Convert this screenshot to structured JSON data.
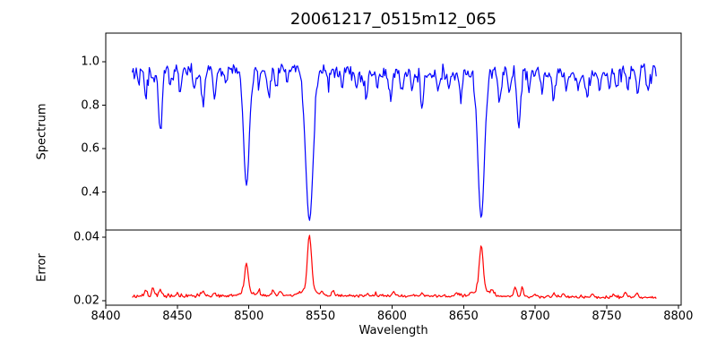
{
  "figure": {
    "background": "#ffffff",
    "axes_color": "#000000",
    "text_color": "#000000"
  },
  "chart_data": {
    "type": "line",
    "title": "20061217_0515m12_065",
    "xlabel": "Wavelength",
    "xlim": [
      8400,
      8802
    ],
    "x_data_range": [
      8418.5,
      8785
    ],
    "sample_step": 0.7,
    "noise_seed": 20061217,
    "x_ticks": [
      {
        "value": 8400,
        "label": "8400"
      },
      {
        "value": 8450,
        "label": "8450"
      },
      {
        "value": 8500,
        "label": "8500"
      },
      {
        "value": 8550,
        "label": "8550"
      },
      {
        "value": 8600,
        "label": "8600"
      },
      {
        "value": 8650,
        "label": "8650"
      },
      {
        "value": 8700,
        "label": "8700"
      },
      {
        "value": 8750,
        "label": "8750"
      },
      {
        "value": 8800,
        "label": "8800"
      }
    ],
    "panels": [
      {
        "name": "spectrum",
        "ylabel": "Spectrum",
        "color": "#0000ff",
        "ylim": [
          0.225,
          1.132
        ],
        "y_ticks": [
          {
            "value": 1.0,
            "label": "1.0"
          },
          {
            "value": 0.8,
            "label": "0.8"
          },
          {
            "value": 0.6,
            "label": "0.6"
          },
          {
            "value": 0.4,
            "label": "0.4"
          }
        ],
        "continuum": 0.955,
        "noise_amplitude": 0.045,
        "absorption_lines": [
          {
            "center": 8423.0,
            "depth": 0.07,
            "sigma": 0.8
          },
          {
            "center": 8428.0,
            "depth": 0.13,
            "sigma": 1.0
          },
          {
            "center": 8433.0,
            "depth": 0.06,
            "sigma": 0.7
          },
          {
            "center": 8438.0,
            "depth": 0.27,
            "sigma": 1.3
          },
          {
            "center": 8445.0,
            "depth": 0.08,
            "sigma": 0.8
          },
          {
            "center": 8452.0,
            "depth": 0.1,
            "sigma": 0.9
          },
          {
            "center": 8462.0,
            "depth": 0.09,
            "sigma": 0.8
          },
          {
            "center": 8468.0,
            "depth": 0.15,
            "sigma": 1.1
          },
          {
            "center": 8476.0,
            "depth": 0.13,
            "sigma": 1.0
          },
          {
            "center": 8484.0,
            "depth": 0.08,
            "sigma": 0.8
          },
          {
            "center": 8498.3,
            "depth": 0.53,
            "sigma": 2.0
          },
          {
            "center": 8507.0,
            "depth": 0.08,
            "sigma": 0.8
          },
          {
            "center": 8514.0,
            "depth": 0.13,
            "sigma": 1.0
          },
          {
            "center": 8519.0,
            "depth": 0.1,
            "sigma": 0.8
          },
          {
            "center": 8527.0,
            "depth": 0.07,
            "sigma": 0.8
          },
          {
            "center": 8542.3,
            "depth": 0.7,
            "sigma": 2.6
          },
          {
            "center": 8556.0,
            "depth": 0.08,
            "sigma": 0.8
          },
          {
            "center": 8565.0,
            "depth": 0.07,
            "sigma": 0.8
          },
          {
            "center": 8575.0,
            "depth": 0.08,
            "sigma": 0.8
          },
          {
            "center": 8582.0,
            "depth": 0.13,
            "sigma": 0.9
          },
          {
            "center": 8590.0,
            "depth": 0.07,
            "sigma": 0.8
          },
          {
            "center": 8599.0,
            "depth": 0.12,
            "sigma": 0.9
          },
          {
            "center": 8607.0,
            "depth": 0.08,
            "sigma": 0.8
          },
          {
            "center": 8614.0,
            "depth": 0.07,
            "sigma": 0.8
          },
          {
            "center": 8621.0,
            "depth": 0.15,
            "sigma": 1.0
          },
          {
            "center": 8632.0,
            "depth": 0.08,
            "sigma": 0.8
          },
          {
            "center": 8640.0,
            "depth": 0.07,
            "sigma": 0.8
          },
          {
            "center": 8648.0,
            "depth": 0.12,
            "sigma": 0.9
          },
          {
            "center": 8662.3,
            "depth": 0.67,
            "sigma": 2.3
          },
          {
            "center": 8675.0,
            "depth": 0.15,
            "sigma": 0.9
          },
          {
            "center": 8682.0,
            "depth": 0.1,
            "sigma": 0.8
          },
          {
            "center": 8688.5,
            "depth": 0.25,
            "sigma": 1.2
          },
          {
            "center": 8696.0,
            "depth": 0.08,
            "sigma": 0.8
          },
          {
            "center": 8705.0,
            "depth": 0.07,
            "sigma": 0.8
          },
          {
            "center": 8713.0,
            "depth": 0.12,
            "sigma": 0.9
          },
          {
            "center": 8722.0,
            "depth": 0.08,
            "sigma": 0.8
          },
          {
            "center": 8730.0,
            "depth": 0.07,
            "sigma": 0.8
          },
          {
            "center": 8736.0,
            "depth": 0.11,
            "sigma": 0.9
          },
          {
            "center": 8745.0,
            "depth": 0.08,
            "sigma": 0.8
          },
          {
            "center": 8752.0,
            "depth": 0.07,
            "sigma": 0.8
          },
          {
            "center": 8757.0,
            "depth": 0.1,
            "sigma": 0.9
          },
          {
            "center": 8765.0,
            "depth": 0.08,
            "sigma": 0.8
          },
          {
            "center": 8772.0,
            "depth": 0.12,
            "sigma": 0.9
          },
          {
            "center": 8779.0,
            "depth": 0.09,
            "sigma": 0.8
          }
        ]
      },
      {
        "name": "error",
        "ylabel": "Error",
        "color": "#ff0000",
        "ylim": [
          0.0186,
          0.0423
        ],
        "y_ticks": [
          {
            "value": 0.04,
            "label": "0.04"
          },
          {
            "value": 0.02,
            "label": "0.02"
          }
        ],
        "baseline": 0.0213,
        "noise_amplitude": 0.0005,
        "spikes": [
          {
            "center": 8428.0,
            "height": 0.0018,
            "sigma": 1.0
          },
          {
            "center": 8433.0,
            "height": 0.0028,
            "sigma": 0.8
          },
          {
            "center": 8438.0,
            "height": 0.002,
            "sigma": 1.0
          },
          {
            "center": 8450.0,
            "height": 0.0012,
            "sigma": 0.8
          },
          {
            "center": 8468.0,
            "height": 0.0012,
            "sigma": 0.9
          },
          {
            "center": 8476.0,
            "height": 0.001,
            "sigma": 0.8
          },
          {
            "center": 8498.3,
            "height": 0.009,
            "sigma": 1.2
          },
          {
            "center": 8498.3,
            "height": 0.0015,
            "sigma": 4.0
          },
          {
            "center": 8507.0,
            "height": 0.0012,
            "sigma": 0.8
          },
          {
            "center": 8517.0,
            "height": 0.0018,
            "sigma": 1.0
          },
          {
            "center": 8522.0,
            "height": 0.0015,
            "sigma": 0.9
          },
          {
            "center": 8542.3,
            "height": 0.0172,
            "sigma": 1.4
          },
          {
            "center": 8542.3,
            "height": 0.002,
            "sigma": 5.0
          },
          {
            "center": 8551.0,
            "height": 0.001,
            "sigma": 0.8
          },
          {
            "center": 8559.0,
            "height": 0.0016,
            "sigma": 0.9
          },
          {
            "center": 8583.0,
            "height": 0.001,
            "sigma": 0.8
          },
          {
            "center": 8601.0,
            "height": 0.0012,
            "sigma": 0.9
          },
          {
            "center": 8621.0,
            "height": 0.001,
            "sigma": 0.8
          },
          {
            "center": 8645.0,
            "height": 0.001,
            "sigma": 0.8
          },
          {
            "center": 8662.3,
            "height": 0.014,
            "sigma": 1.3
          },
          {
            "center": 8662.3,
            "height": 0.0022,
            "sigma": 5.0
          },
          {
            "center": 8670.0,
            "height": 0.0015,
            "sigma": 0.9
          },
          {
            "center": 8686.0,
            "height": 0.003,
            "sigma": 0.9
          },
          {
            "center": 8691.0,
            "height": 0.0024,
            "sigma": 0.9
          },
          {
            "center": 8700.0,
            "height": 0.001,
            "sigma": 0.8
          },
          {
            "center": 8713.0,
            "height": 0.001,
            "sigma": 0.8
          },
          {
            "center": 8720.0,
            "height": 0.0012,
            "sigma": 0.8
          },
          {
            "center": 8740.0,
            "height": 0.0012,
            "sigma": 0.8
          },
          {
            "center": 8755.0,
            "height": 0.001,
            "sigma": 0.8
          },
          {
            "center": 8763.0,
            "height": 0.0016,
            "sigma": 0.9
          },
          {
            "center": 8771.0,
            "height": 0.0014,
            "sigma": 0.9
          }
        ]
      }
    ]
  }
}
